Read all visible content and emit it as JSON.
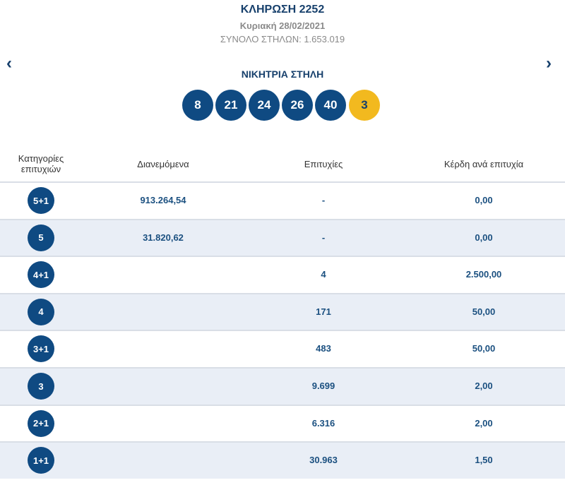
{
  "header": {
    "title": "ΚΛΗΡΩΣΗ 2252",
    "date": "Κυριακή 28/02/2021",
    "total": "ΣΥΝΟΛΟ ΣΤΗΛΩΝ: 1.653.019",
    "winning_label": "ΝΙΚΗΤΡΙΑ ΣΤΗΛΗ",
    "numbers": [
      8,
      21,
      24,
      26,
      40
    ],
    "bonus": 3
  },
  "table": {
    "headers": [
      "Κατηγορίες επιτυχιών",
      "Διανεμόμενα",
      "Επιτυχίες",
      "Κέρδη ανά επιτυχία"
    ],
    "rows": [
      {
        "category": "5+1",
        "distributed": "913.264,54",
        "winners": "-",
        "prize": "0,00"
      },
      {
        "category": "5",
        "distributed": "31.820,62",
        "winners": "-",
        "prize": "0,00"
      },
      {
        "category": "4+1",
        "winners": "4",
        "prize": "2.500,00"
      },
      {
        "category": "4",
        "winners": "171",
        "prize": "50,00"
      },
      {
        "category": "3+1",
        "winners": "483",
        "prize": "50,00"
      },
      {
        "category": "3",
        "winners": "9.699",
        "prize": "2,00"
      },
      {
        "category": "2+1",
        "winners": "6.316",
        "prize": "2,00"
      },
      {
        "category": "1+1",
        "winners": "30.963",
        "prize": "1,50"
      }
    ]
  }
}
